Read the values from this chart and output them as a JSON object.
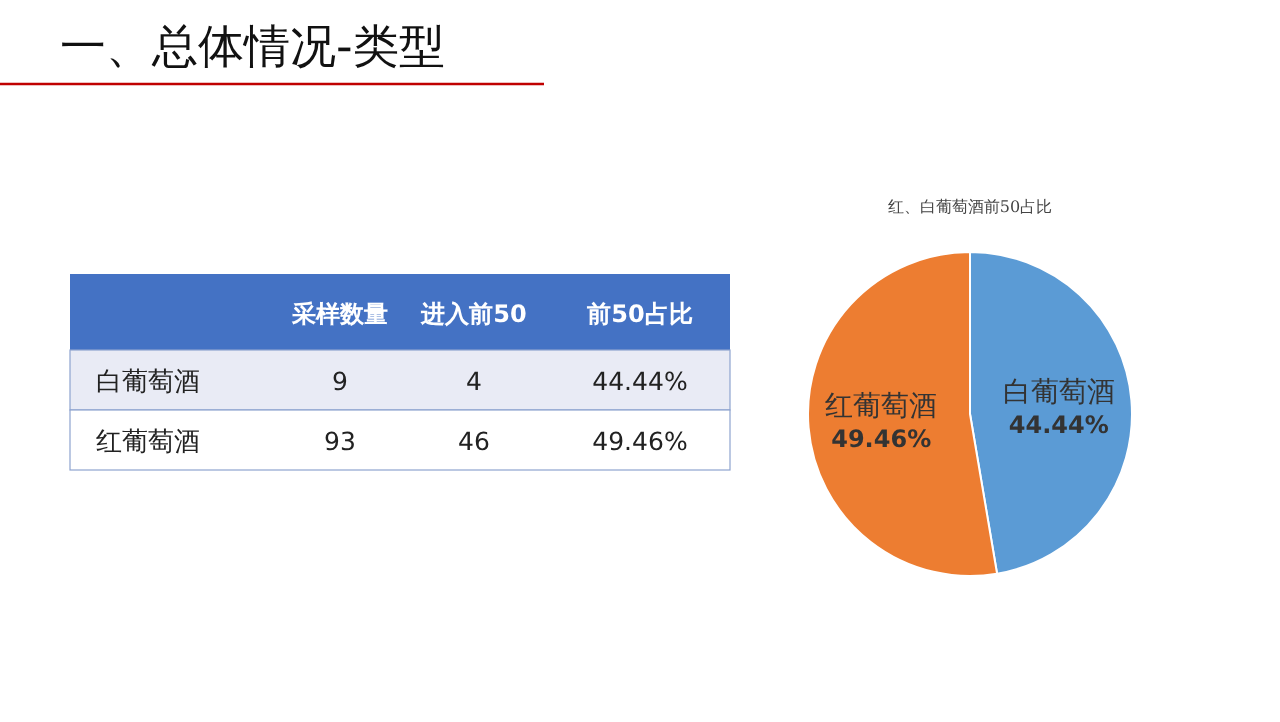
{
  "chart_data": [
    {
      "type": "other",
      "title": "一、总体情况-类型",
      "categories": [
        null,
        "采样数量",
        "进入前50",
        "前50占比"
      ],
      "y_categories": [
        "白葡萄酒",
        "红葡萄酒"
      ],
      "cell_labels": [
        [
          "9",
          "4",
          "44.44%"
        ],
        [
          "93",
          "46",
          "49.46%"
        ]
      ]
    },
    {
      "type": "pie",
      "title": "红、白葡萄酒前50占比",
      "categories": [
        "白葡萄酒",
        "红葡萄酒"
      ],
      "values": [
        44.44,
        49.46
      ],
      "colors": [
        "#5b9bd5",
        "#ed7d31"
      ],
      "value_labels": [
        "44.44%",
        "49.46%"
      ],
      "data_labels": true
    }
  ]
}
